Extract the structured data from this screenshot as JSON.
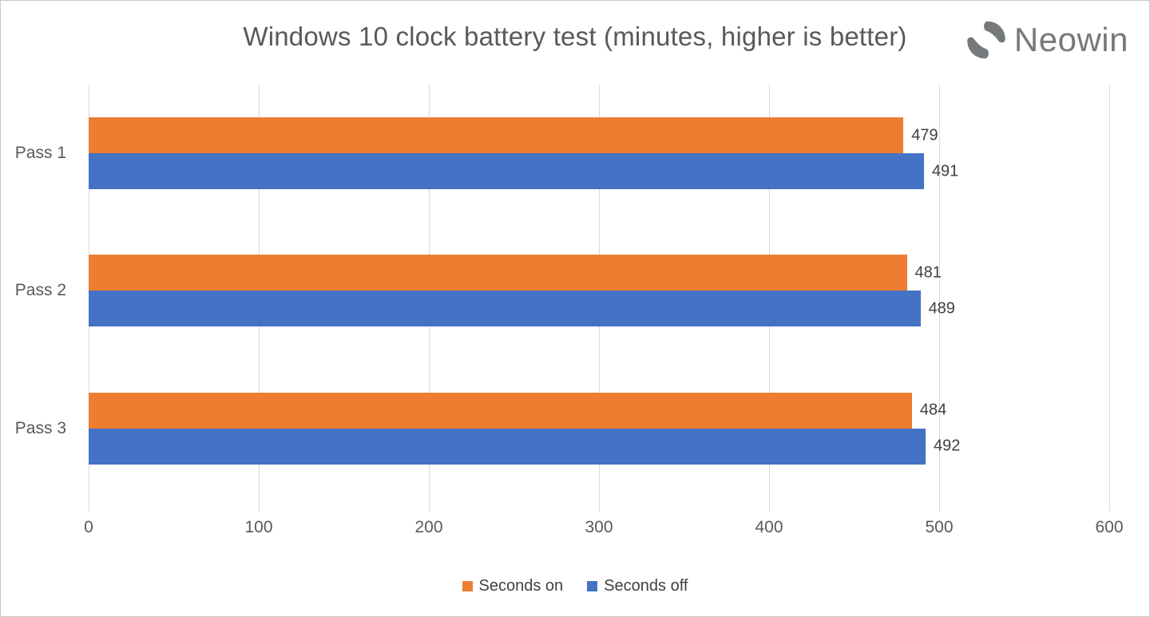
{
  "title": "Windows 10 clock battery test (minutes, higher is better)",
  "logo": {
    "text": "Neowin",
    "icon": "neowin-swirl",
    "color": "#75797c"
  },
  "chart_data": {
    "type": "bar",
    "orientation": "horizontal",
    "title": "Windows 10 clock battery test (minutes, higher is better)",
    "categories": [
      "Pass 1",
      "Pass 2",
      "Pass 3"
    ],
    "series": [
      {
        "name": "Seconds on",
        "color": "#ED7D31",
        "values": [
          479,
          481,
          484
        ]
      },
      {
        "name": "Seconds off",
        "color": "#4472C4",
        "values": [
          491,
          489,
          492
        ]
      }
    ],
    "xlim": [
      0,
      600
    ],
    "x_ticks": [
      0,
      100,
      200,
      300,
      400,
      500,
      600
    ],
    "grid": true,
    "gridline_color": "#d9d9d9",
    "value_labels": true,
    "legend_position": "bottom"
  }
}
